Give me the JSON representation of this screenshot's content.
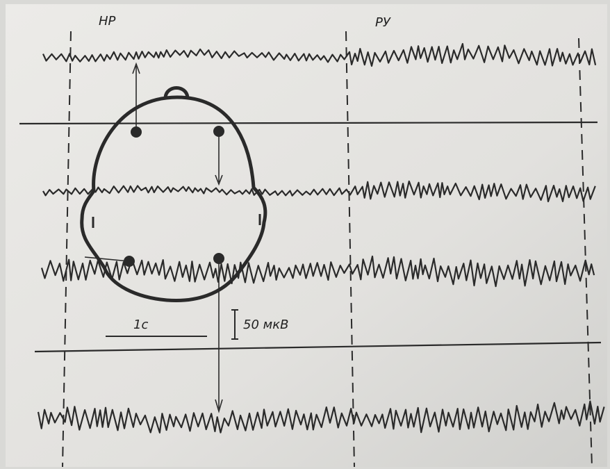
{
  "labels": {
    "left_marker": "НР",
    "right_marker": "РУ",
    "time_scale": "1с",
    "amplitude_scale": "50 мкВ"
  }
}
